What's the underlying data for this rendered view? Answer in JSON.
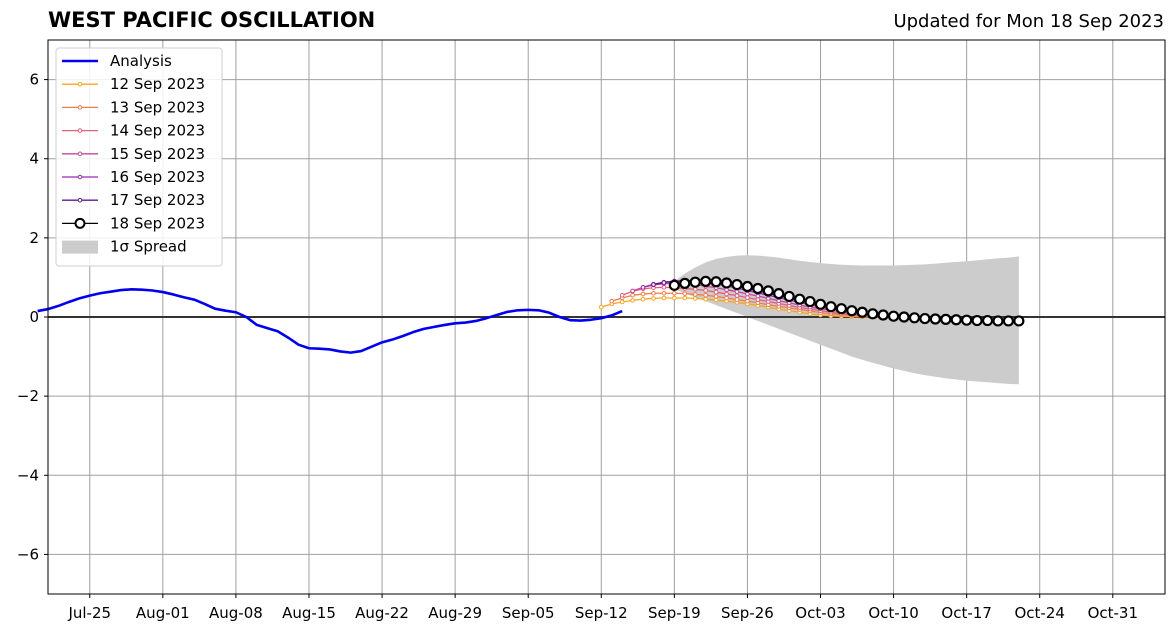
{
  "chart_data": {
    "type": "line",
    "title": "WEST PACIFIC OSCILLATION",
    "subtitle": "Updated for Mon 18 Sep 2023",
    "xlabel": "",
    "ylabel": "",
    "xlim": [
      "2023-07-21",
      "2023-11-05"
    ],
    "ylim": [
      -7,
      7
    ],
    "grid": true,
    "legend_position": "top-left",
    "xticks": [
      "2023-07-25",
      "2023-08-01",
      "2023-08-08",
      "2023-08-15",
      "2023-08-22",
      "2023-08-29",
      "2023-09-05",
      "2023-09-12",
      "2023-09-19",
      "2023-09-26",
      "2023-10-03",
      "2023-10-10",
      "2023-10-17",
      "2023-10-24",
      "2023-10-31"
    ],
    "xtick_labels": [
      "Jul-25",
      "Aug-01",
      "Aug-08",
      "Aug-15",
      "Aug-22",
      "Aug-29",
      "Sep-05",
      "Sep-12",
      "Sep-19",
      "Sep-26",
      "Oct-03",
      "Oct-10",
      "Oct-17",
      "Oct-24",
      "Oct-31"
    ],
    "yticks": [
      -6,
      -4,
      -2,
      0,
      2,
      4,
      6
    ],
    "ytick_labels": [
      "−6",
      "−4",
      "−2",
      "0",
      "2",
      "4",
      "6"
    ],
    "analysis": {
      "name": "Analysis",
      "color": "#0000ee",
      "start": "2023-07-20",
      "values": [
        0.15,
        0.2,
        0.28,
        0.38,
        0.47,
        0.54,
        0.6,
        0.64,
        0.68,
        0.7,
        0.69,
        0.67,
        0.63,
        0.57,
        0.5,
        0.44,
        0.33,
        0.21,
        0.16,
        0.12,
        0.0,
        -0.2,
        -0.28,
        -0.36,
        -0.52,
        -0.7,
        -0.79,
        -0.8,
        -0.82,
        -0.87,
        -0.9,
        -0.86,
        -0.75,
        -0.64,
        -0.57,
        -0.48,
        -0.38,
        -0.3,
        -0.25,
        -0.2,
        -0.16,
        -0.14,
        -0.1,
        -0.03,
        0.05,
        0.13,
        0.17,
        0.18,
        0.17,
        0.11,
        0.0,
        -0.08,
        -0.09,
        -0.07,
        -0.03,
        0.04,
        0.15
      ]
    },
    "series": [
      {
        "name": "12 Sep 2023",
        "color": "#f5a623",
        "start": "2023-09-12",
        "values": [
          0.25,
          0.33,
          0.38,
          0.42,
          0.45,
          0.47,
          0.48,
          0.48,
          0.48,
          0.47,
          0.45,
          0.43,
          0.4,
          0.37,
          0.33,
          0.29,
          0.25,
          0.2,
          0.16,
          0.12,
          0.08,
          0.05,
          0.03,
          0.02,
          0.01,
          0.0,
          0.0,
          0.0,
          0.0,
          0.0,
          0.0
        ]
      },
      {
        "name": "13 Sep 2023",
        "color": "#ef7d4b",
        "start": "2023-09-13",
        "values": [
          0.4,
          0.48,
          0.55,
          0.58,
          0.6,
          0.6,
          0.6,
          0.59,
          0.57,
          0.55,
          0.52,
          0.48,
          0.44,
          0.4,
          0.36,
          0.31,
          0.27,
          0.23,
          0.19,
          0.15,
          0.11,
          0.08,
          0.06,
          0.04,
          0.02,
          0.01,
          0.0,
          -0.01,
          -0.01,
          -0.02,
          -0.02
        ]
      },
      {
        "name": "14 Sep 2023",
        "color": "#e0607e",
        "start": "2023-09-14",
        "values": [
          0.55,
          0.65,
          0.71,
          0.74,
          0.75,
          0.74,
          0.72,
          0.7,
          0.67,
          0.63,
          0.58,
          0.54,
          0.49,
          0.44,
          0.39,
          0.34,
          0.29,
          0.24,
          0.2,
          0.16,
          0.12,
          0.09,
          0.06,
          0.04,
          0.02,
          0.01,
          0.0,
          -0.01,
          -0.02,
          -0.02,
          -0.03
        ]
      },
      {
        "name": "15 Sep 2023",
        "color": "#c4469a",
        "start": "2023-09-15",
        "values": [
          0.66,
          0.75,
          0.81,
          0.84,
          0.85,
          0.84,
          0.82,
          0.78,
          0.74,
          0.69,
          0.64,
          0.58,
          0.53,
          0.47,
          0.41,
          0.36,
          0.3,
          0.25,
          0.21,
          0.17,
          0.13,
          0.09,
          0.06,
          0.04,
          0.02,
          0.0,
          -0.01,
          -0.02,
          -0.03,
          -0.03,
          -0.04
        ]
      },
      {
        "name": "16 Sep 2023",
        "color": "#9c27b0",
        "start": "2023-09-16",
        "values": [
          0.75,
          0.83,
          0.88,
          0.91,
          0.92,
          0.91,
          0.88,
          0.84,
          0.79,
          0.73,
          0.67,
          0.61,
          0.55,
          0.49,
          0.43,
          0.37,
          0.31,
          0.26,
          0.21,
          0.17,
          0.13,
          0.09,
          0.06,
          0.04,
          0.02,
          0.0,
          -0.01,
          -0.02,
          -0.03,
          -0.04,
          -0.05
        ]
      },
      {
        "name": "17 Sep 2023",
        "color": "#5b1a8c",
        "start": "2023-09-17",
        "values": [
          0.82,
          0.87,
          0.9,
          0.92,
          0.92,
          0.9,
          0.87,
          0.83,
          0.78,
          0.72,
          0.66,
          0.6,
          0.54,
          0.48,
          0.42,
          0.36,
          0.3,
          0.25,
          0.2,
          0.16,
          0.12,
          0.08,
          0.05,
          0.03,
          0.01,
          -0.01,
          -0.02,
          -0.03,
          -0.04,
          -0.05,
          -0.06
        ]
      },
      {
        "name": "18 Sep 2023",
        "color": "#000000",
        "start": "2023-09-19",
        "values": [
          0.8,
          0.85,
          0.88,
          0.9,
          0.89,
          0.86,
          0.82,
          0.77,
          0.72,
          0.66,
          0.59,
          0.52,
          0.45,
          0.39,
          0.32,
          0.26,
          0.21,
          0.16,
          0.12,
          0.08,
          0.05,
          0.02,
          0.0,
          -0.02,
          -0.04,
          -0.05,
          -0.06,
          -0.07,
          -0.08,
          -0.09,
          -0.09,
          -0.1,
          -0.1,
          -0.1
        ]
      }
    ],
    "spread": {
      "name": "1σ Spread",
      "color": "#cccccc",
      "start": "2023-09-19",
      "upper": [
        0.9,
        1.1,
        1.25,
        1.38,
        1.47,
        1.52,
        1.55,
        1.56,
        1.55,
        1.53,
        1.5,
        1.46,
        1.42,
        1.39,
        1.36,
        1.34,
        1.32,
        1.31,
        1.3,
        1.3,
        1.3,
        1.3,
        1.31,
        1.32,
        1.33,
        1.35,
        1.37,
        1.39,
        1.41,
        1.43,
        1.46,
        1.48,
        1.5,
        1.53
      ],
      "lower": [
        0.7,
        0.6,
        0.5,
        0.4,
        0.3,
        0.2,
        0.1,
        0.0,
        -0.1,
        -0.2,
        -0.3,
        -0.4,
        -0.5,
        -0.6,
        -0.7,
        -0.8,
        -0.9,
        -1.0,
        -1.08,
        -1.16,
        -1.23,
        -1.3,
        -1.36,
        -1.42,
        -1.47,
        -1.51,
        -1.55,
        -1.58,
        -1.61,
        -1.63,
        -1.65,
        -1.67,
        -1.69,
        -1.7
      ]
    }
  }
}
